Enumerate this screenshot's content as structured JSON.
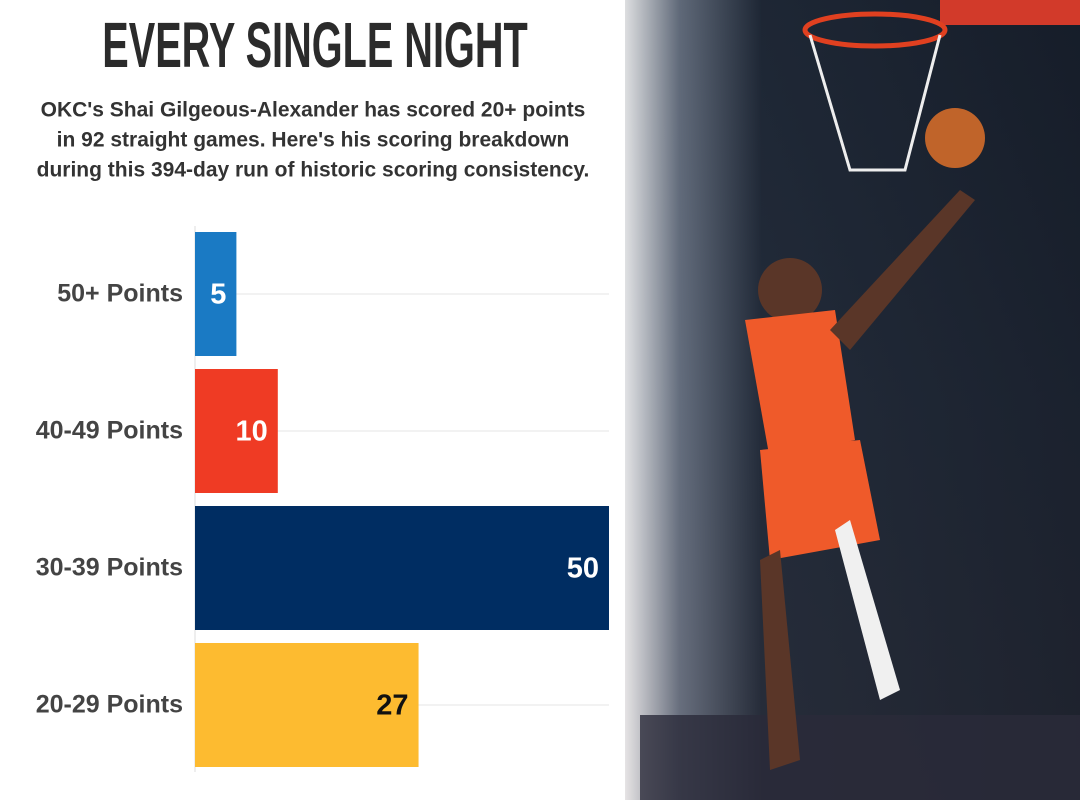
{
  "chart_data": {
    "type": "barh",
    "title": "EVERY SINGLE NIGHT",
    "subtitle": [
      "OKC's Shai Gilgeous-Alexander has scored 20+ points",
      "in 92 straight games. Here's his scoring breakdown",
      "during this 394-day run of historic scoring consistency."
    ],
    "categories": [
      "50+ Points",
      "40-49 Points",
      "30-39 Points",
      "20-29 Points"
    ],
    "values": [
      5,
      10,
      50,
      27
    ],
    "colors": [
      "#1a7ac4",
      "#ef3b24",
      "#002d62",
      "#fdbb30"
    ],
    "value_label_colors": [
      "#ffffff",
      "#ffffff",
      "#ffffff",
      "#111111"
    ],
    "xlim": [
      0,
      50
    ],
    "grid": true
  }
}
